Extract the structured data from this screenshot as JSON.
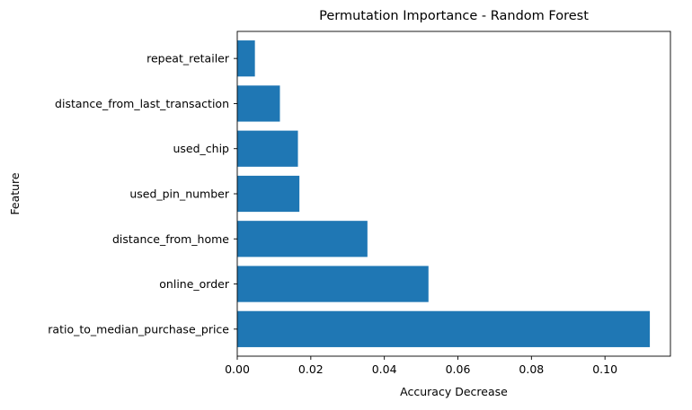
{
  "chart_data": {
    "type": "bar",
    "orientation": "horizontal",
    "title": "Permutation Importance - Random Forest",
    "xlabel": "Accuracy Decrease",
    "ylabel": "Feature",
    "categories": [
      "ratio_to_median_purchase_price",
      "online_order",
      "distance_from_home",
      "used_pin_number",
      "used_chip",
      "distance_from_last_transaction",
      "repeat_retailer"
    ],
    "values": [
      0.1122,
      0.052,
      0.0354,
      0.0169,
      0.0165,
      0.0116,
      0.0048
    ],
    "xlim": [
      0.0,
      0.1178
    ],
    "xticks": [
      "0.00",
      "0.02",
      "0.04",
      "0.06",
      "0.08",
      "0.10"
    ],
    "bar_color": "#1f77b4",
    "grid": false,
    "legend": "none"
  }
}
